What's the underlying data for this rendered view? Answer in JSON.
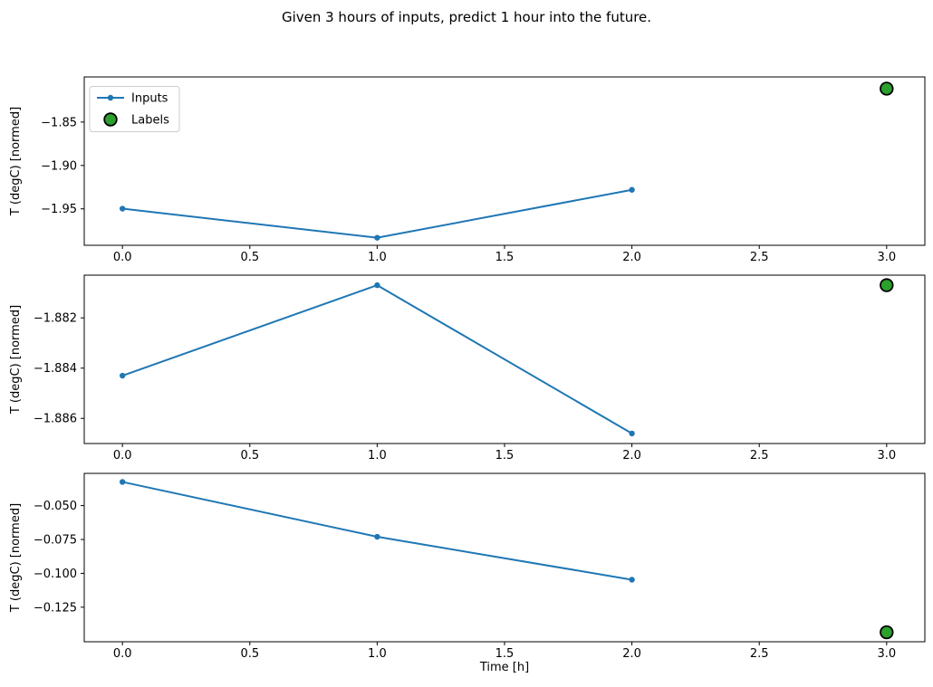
{
  "title": "Given 3 hours of inputs, predict 1 hour into the future.",
  "colors": {
    "inputs_line": "#1f77b4",
    "labels_fill": "#2ca02c",
    "labels_edge": "#000000",
    "axis": "#000000",
    "text": "#000000",
    "legend_border": "#cccccc",
    "background": "#ffffff"
  },
  "legend": {
    "position": "upper-left",
    "entries": [
      {
        "label": "Inputs",
        "marker": "line-dot"
      },
      {
        "label": "Labels",
        "marker": "circle"
      }
    ]
  },
  "x_axis_label": "Time [h]",
  "chart_data": [
    {
      "type": "line",
      "subplot": 1,
      "ylabel": "T (degC) [normed]",
      "xlabel": "",
      "series": [
        {
          "name": "Inputs",
          "style": "line-marker",
          "color": "#1f77b4",
          "x": [
            0,
            1,
            2
          ],
          "y": [
            -1.9498,
            -1.9833,
            -1.9281
          ]
        },
        {
          "name": "Labels",
          "style": "scatter",
          "color": "#2ca02c",
          "edge": "#000000",
          "x": [
            3
          ],
          "y": [
            -1.8115
          ]
        }
      ],
      "xlim": [
        -0.15,
        3.15
      ],
      "ylim": [
        -1.992,
        -1.798
      ],
      "xtick_values": [
        0,
        0.5,
        1,
        1.5,
        2,
        2.5,
        3
      ],
      "xtick_labels": [
        "0.0",
        "0.5",
        "1.0",
        "1.5",
        "2.0",
        "2.5",
        "3.0"
      ],
      "ytick_values": [
        -1.85,
        -1.9,
        -1.95
      ],
      "ytick_labels": [
        "−1.85",
        "−1.90",
        "−1.95"
      ],
      "grid": false,
      "legend": true
    },
    {
      "type": "line",
      "subplot": 2,
      "ylabel": "T (degC) [normed]",
      "xlabel": "",
      "series": [
        {
          "name": "Inputs",
          "style": "line-marker",
          "color": "#1f77b4",
          "x": [
            0,
            1,
            2
          ],
          "y": [
            -1.8843,
            -1.8807,
            -1.8866
          ]
        },
        {
          "name": "Labels",
          "style": "scatter",
          "color": "#2ca02c",
          "edge": "#000000",
          "x": [
            3
          ],
          "y": [
            -1.8807
          ]
        }
      ],
      "xlim": [
        -0.15,
        3.15
      ],
      "ylim": [
        -1.887,
        -1.8803
      ],
      "xtick_values": [
        0,
        0.5,
        1,
        1.5,
        2,
        2.5,
        3
      ],
      "xtick_labels": [
        "0.0",
        "0.5",
        "1.0",
        "1.5",
        "2.0",
        "2.5",
        "3.0"
      ],
      "ytick_values": [
        -1.882,
        -1.884,
        -1.886
      ],
      "ytick_labels": [
        "−1.882",
        "−1.884",
        "−1.886"
      ],
      "grid": false,
      "legend": false
    },
    {
      "type": "line",
      "subplot": 3,
      "ylabel": "T (degC) [normed]",
      "xlabel": "Time [h]",
      "series": [
        {
          "name": "Inputs",
          "style": "line-marker",
          "color": "#1f77b4",
          "x": [
            0,
            1,
            2
          ],
          "y": [
            -0.0325,
            -0.073,
            -0.1047
          ]
        },
        {
          "name": "Labels",
          "style": "scatter",
          "color": "#2ca02c",
          "edge": "#000000",
          "x": [
            3
          ],
          "y": [
            -0.1435
          ]
        }
      ],
      "xlim": [
        -0.15,
        3.15
      ],
      "ylim": [
        -0.1505,
        -0.0262
      ],
      "xtick_values": [
        0,
        0.5,
        1,
        1.5,
        2,
        2.5,
        3
      ],
      "xtick_labels": [
        "0.0",
        "0.5",
        "1.0",
        "1.5",
        "2.0",
        "2.5",
        "3.0"
      ],
      "ytick_values": [
        -0.05,
        -0.075,
        -0.1,
        -0.125
      ],
      "ytick_labels": [
        "−0.050",
        "−0.075",
        "−0.100",
        "−0.125"
      ],
      "grid": false,
      "legend": false
    }
  ]
}
